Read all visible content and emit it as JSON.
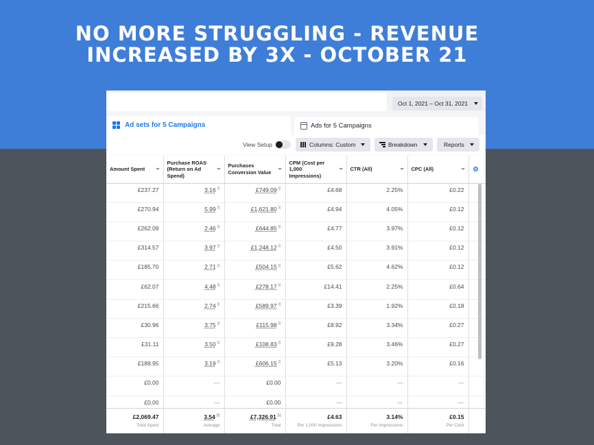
{
  "hero": {
    "title_line1": "NO MORE STRUGGLING - REVENUE",
    "title_line2": "INCREASED BY 3X - OCTOBER 21"
  },
  "header": {
    "date_range": "Oct 1, 2021 – Oct 31, 2021"
  },
  "tabs": {
    "ad_sets": "Ad sets for 5 Campaigns",
    "ads": "Ads for 5 Campaigns"
  },
  "toolbar": {
    "view_setup": "View Setup",
    "columns": "Columns: Custom",
    "breakdown": "Breakdown",
    "reports": "Reports"
  },
  "columns": [
    "Amount Spent",
    "Purchase ROAS (Return on Ad Spend)",
    "Purchases Conversion Value",
    "CPM (Cost per 1,000 Impressions)",
    "CTR (All)",
    "CPC (All)"
  ],
  "rows": [
    {
      "amount": "£237.27",
      "roas": "3.16",
      "conv": "£749.09",
      "cpm": "£4.68",
      "ctr": "2.25%",
      "cpc": "£0.22"
    },
    {
      "amount": "£270.94",
      "roas": "5.99",
      "conv": "£1,621.80",
      "cpm": "£4.94",
      "ctr": "4.05%",
      "cpc": "£0.12"
    },
    {
      "amount": "£262.09",
      "roas": "2.46",
      "conv": "£644.85",
      "cpm": "£4.77",
      "ctr": "3.97%",
      "cpc": "£0.12"
    },
    {
      "amount": "£314.57",
      "roas": "3.97",
      "conv": "£1,248.12",
      "cpm": "£4.50",
      "ctr": "3.91%",
      "cpc": "£0.12"
    },
    {
      "amount": "£185.70",
      "roas": "2.71",
      "conv": "£504.15",
      "cpm": "£5.62",
      "ctr": "4.62%",
      "cpc": "£0.12"
    },
    {
      "amount": "£62.07",
      "roas": "4.48",
      "conv": "£278.17",
      "cpm": "£14.41",
      "ctr": "2.25%",
      "cpc": "£0.64"
    },
    {
      "amount": "£215.66",
      "roas": "2.74",
      "conv": "£589.97",
      "cpm": "£3.39",
      "ctr": "1.92%",
      "cpc": "£0.18"
    },
    {
      "amount": "£30.96",
      "roas": "3.75",
      "conv": "£115.98",
      "cpm": "£8.92",
      "ctr": "3.34%",
      "cpc": "£0.27"
    },
    {
      "amount": "£31.11",
      "roas": "3.50",
      "conv": "£108.83",
      "cpm": "£9.28",
      "ctr": "3.46%",
      "cpc": "£0.27"
    },
    {
      "amount": "£189.95",
      "roas": "3.19",
      "conv": "£606.15",
      "cpm": "£5.13",
      "ctr": "3.20%",
      "cpc": "£0.16"
    },
    {
      "amount": "£0.00",
      "roas": "—",
      "conv": "£0.00",
      "cpm": "—",
      "ctr": "—",
      "cpc": "—"
    },
    {
      "amount": "£0.00",
      "roas": "—",
      "conv": "£0.00",
      "cpm": "—",
      "ctr": "—",
      "cpc": "—"
    }
  ],
  "totals": {
    "amount": {
      "value": "£2,069.47",
      "label": "Total Spent"
    },
    "roas": {
      "value": "3.54",
      "label": "Average"
    },
    "conv": {
      "value": "£7,326.91",
      "label": "Total"
    },
    "cpm": {
      "value": "£4.63",
      "label": "Per 1,000 Impressions"
    },
    "ctr": {
      "value": "3.14%",
      "label": "Per Impressions"
    },
    "cpc": {
      "value": "£0.15",
      "label": "Per Click"
    }
  },
  "colors": {
    "hero_bg": "#3f7ed8",
    "page_bg": "#4d545b",
    "accent": "#1877f2"
  },
  "icons": [
    "grid-icon",
    "ad-icon",
    "toggle",
    "columns-icon",
    "breakdown-icon",
    "caret-down-icon",
    "sort-icon",
    "column-picker-icon",
    "info-icon"
  ]
}
